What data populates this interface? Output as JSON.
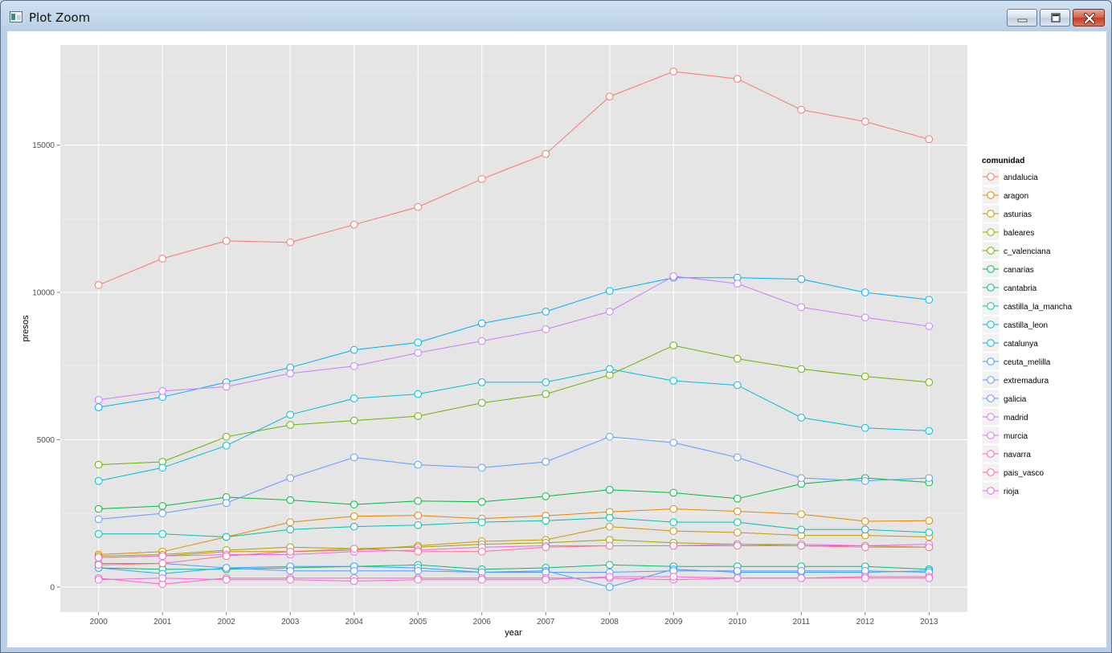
{
  "window": {
    "title": "Plot Zoom",
    "icons": {
      "app": "plot-zoom-app-icon",
      "minimize": "minimize-icon",
      "maximize": "maximize-icon",
      "close": "close-icon"
    }
  },
  "chart_data": {
    "type": "line",
    "title": "",
    "xlabel": "year",
    "ylabel": "presos",
    "legend_title": "comunidad",
    "legend_position": "right",
    "grid": true,
    "markers": "open-circle",
    "x": [
      2000,
      2001,
      2002,
      2003,
      2004,
      2005,
      2006,
      2007,
      2008,
      2009,
      2010,
      2011,
      2012,
      2013
    ],
    "ylim": [
      -850,
      18400
    ],
    "yticks": [
      0,
      5000,
      10000,
      15000
    ],
    "series": [
      {
        "name": "andalucia",
        "color": "#F8766D",
        "values": [
          10250,
          11150,
          11750,
          11700,
          12300,
          12900,
          13850,
          14700,
          16650,
          17500,
          17250,
          16200,
          15800,
          15200
        ]
      },
      {
        "name": "aragon",
        "color": "#E58700",
        "values": [
          1100,
          1200,
          1700,
          2200,
          2400,
          2430,
          2320,
          2420,
          2550,
          2650,
          2570,
          2470,
          2230,
          2250
        ]
      },
      {
        "name": "asturias",
        "color": "#C99800",
        "values": [
          1000,
          1050,
          1200,
          1200,
          1250,
          1400,
          1550,
          1600,
          2050,
          1900,
          1850,
          1750,
          1750,
          1700
        ]
      },
      {
        "name": "baleares",
        "color": "#A3A500",
        "values": [
          1050,
          1100,
          1250,
          1350,
          1300,
          1350,
          1450,
          1500,
          1600,
          1500,
          1450,
          1400,
          1400,
          1350
        ]
      },
      {
        "name": "c_valenciana",
        "color": "#6BB100",
        "values": [
          4150,
          4250,
          5100,
          5500,
          5650,
          5800,
          6250,
          6550,
          7200,
          8200,
          7750,
          7400,
          7150,
          6950
        ]
      },
      {
        "name": "canarias",
        "color": "#00BA38",
        "values": [
          2650,
          2750,
          3050,
          2950,
          2800,
          2920,
          2890,
          3080,
          3300,
          3200,
          3000,
          3500,
          3700,
          3550
        ]
      },
      {
        "name": "cantabria",
        "color": "#00BF7D",
        "values": [
          650,
          600,
          600,
          650,
          700,
          750,
          600,
          650,
          750,
          700,
          700,
          700,
          700,
          600
        ]
      },
      {
        "name": "castilla_la_mancha",
        "color": "#00C0AF",
        "values": [
          1800,
          1800,
          1700,
          1950,
          2050,
          2100,
          2200,
          2250,
          2350,
          2200,
          2200,
          1950,
          1950,
          1850
        ]
      },
      {
        "name": "castilla_leon",
        "color": "#00BCD8",
        "values": [
          3600,
          4050,
          4800,
          5850,
          6400,
          6550,
          6950,
          6950,
          7400,
          7000,
          6850,
          5750,
          5400,
          5300
        ]
      },
      {
        "name": "catalunya",
        "color": "#00B0F6",
        "values": [
          6100,
          6450,
          6950,
          7450,
          8050,
          8300,
          8950,
          9350,
          10050,
          10500,
          10500,
          10450,
          10000,
          9750
        ]
      },
      {
        "name": "ceuta_melilla",
        "color": "#35A2FF",
        "values": [
          650,
          450,
          650,
          700,
          700,
          650,
          500,
          550,
          0,
          600,
          500,
          500,
          500,
          550
        ]
      },
      {
        "name": "extremadura",
        "color": "#5C9AFF",
        "values": [
          800,
          800,
          650,
          550,
          550,
          550,
          500,
          500,
          500,
          550,
          550,
          550,
          550,
          500
        ]
      },
      {
        "name": "galicia",
        "color": "#619CFF",
        "values": [
          2300,
          2500,
          2850,
          3700,
          4400,
          4150,
          4050,
          4250,
          5100,
          4900,
          4400,
          3700,
          3600,
          3700
        ]
      },
      {
        "name": "madrid",
        "color": "#C77CFF",
        "values": [
          6350,
          6650,
          6800,
          7250,
          7500,
          7950,
          8350,
          8750,
          9350,
          10550,
          10300,
          9500,
          9150,
          8850
        ]
      },
      {
        "name": "murcia",
        "color": "#E76BF3",
        "values": [
          1000,
          1050,
          1100,
          1100,
          1200,
          1250,
          1350,
          1400,
          1400,
          1400,
          1450,
          1450,
          1400,
          1450
        ]
      },
      {
        "name": "navarra",
        "color": "#FF62BC",
        "values": [
          300,
          100,
          300,
          300,
          300,
          300,
          300,
          300,
          300,
          250,
          300,
          300,
          350,
          350
        ]
      },
      {
        "name": "pais_vasco",
        "color": "#FF6C91",
        "values": [
          750,
          800,
          1050,
          1200,
          1300,
          1200,
          1200,
          1350,
          1400,
          1400,
          1400,
          1400,
          1350,
          1350
        ]
      },
      {
        "name": "rioja",
        "color": "#F564E3",
        "values": [
          250,
          300,
          250,
          250,
          200,
          250,
          250,
          250,
          350,
          350,
          300,
          300,
          300,
          300
        ]
      }
    ]
  }
}
